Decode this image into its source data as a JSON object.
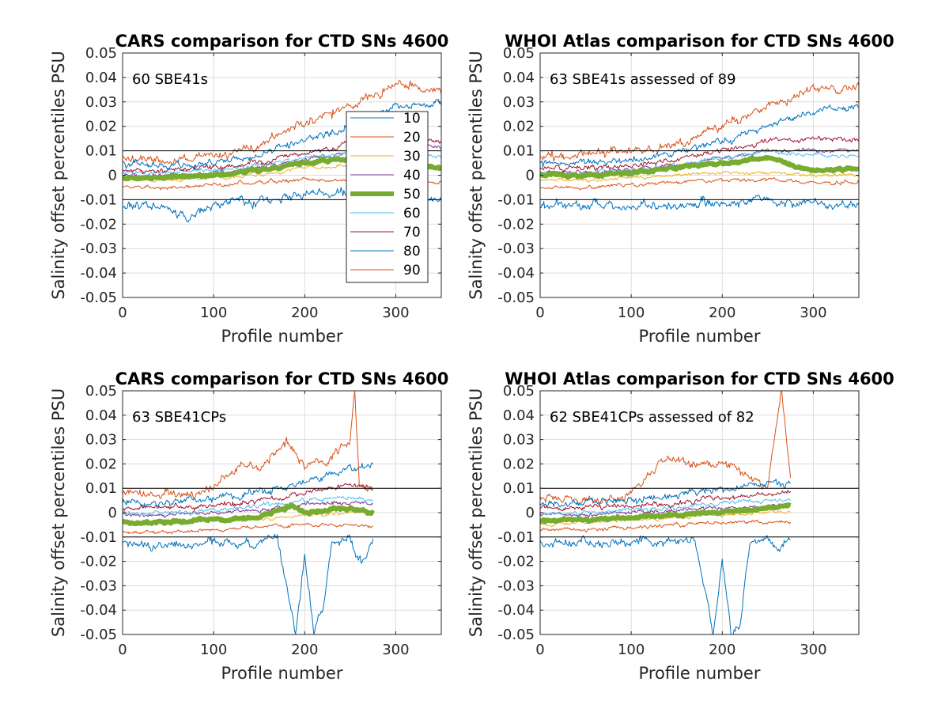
{
  "chart_data": [
    {
      "type": "line",
      "title": "CARS comparison for CTD SNs 4600",
      "xlabel": "Profile number",
      "ylabel": "Salinity offset percentiles PSU",
      "annotation": "60 SBE41s",
      "xlim": [
        0,
        350
      ],
      "ylim": [
        -0.05,
        0.05
      ],
      "xticks": [
        "0",
        "100",
        "200",
        "300"
      ],
      "yticks": [
        "-0.05",
        "-0.04",
        "-0.03",
        "-0.02",
        "-0.01",
        "0",
        "0.01",
        "0.02",
        "0.03",
        "0.04",
        "0.05"
      ],
      "grid": true,
      "legend_position": "upper-right",
      "reference_lines": [
        0.01,
        -0.01
      ],
      "n_profiles": 350,
      "series": [
        {
          "name": "10",
          "x": [
            0,
            50,
            70,
            100,
            150,
            200,
            250,
            300,
            350
          ],
          "values": [
            -0.013,
            -0.013,
            -0.017,
            -0.012,
            -0.01,
            -0.008,
            -0.007,
            -0.009,
            -0.01
          ]
        },
        {
          "name": "20",
          "x": [
            0,
            50,
            100,
            150,
            200,
            250,
            300,
            350
          ],
          "values": [
            0.007,
            0.006,
            0.007,
            0.012,
            0.022,
            0.028,
            0.037,
            0.035
          ]
        },
        {
          "name": "30",
          "x": [
            0,
            50,
            100,
            150,
            200,
            250,
            300,
            350
          ],
          "values": [
            -0.002,
            -0.002,
            -0.001,
            0.0,
            0.003,
            0.004,
            0.004,
            0.003
          ]
        },
        {
          "name": "40",
          "x": [
            0,
            50,
            100,
            150,
            200,
            250,
            300,
            350
          ],
          "values": [
            0.0,
            0.0,
            0.001,
            0.003,
            0.006,
            0.01,
            0.012,
            0.012
          ]
        },
        {
          "name": "50",
          "x": [
            0,
            50,
            100,
            150,
            200,
            250,
            300,
            350
          ],
          "values": [
            -0.001,
            -0.001,
            0.0,
            0.002,
            0.005,
            0.007,
            0.004,
            0.003
          ]
        },
        {
          "name": "60",
          "x": [
            0,
            50,
            100,
            150,
            200,
            250,
            300,
            350
          ],
          "values": [
            0.001,
            0.001,
            0.002,
            0.004,
            0.007,
            0.009,
            0.01,
            0.008
          ]
        },
        {
          "name": "70",
          "x": [
            0,
            50,
            100,
            150,
            200,
            250,
            300,
            350
          ],
          "values": [
            0.002,
            0.002,
            0.003,
            0.005,
            0.009,
            0.013,
            0.015,
            0.014
          ]
        },
        {
          "name": "80",
          "x": [
            0,
            50,
            100,
            150,
            200,
            250,
            300,
            350
          ],
          "values": [
            0.004,
            0.004,
            0.005,
            0.008,
            0.014,
            0.02,
            0.028,
            0.03
          ]
        },
        {
          "name": "90",
          "x": [
            0,
            50,
            100,
            150,
            200,
            250,
            300,
            350
          ],
          "values": [
            -0.005,
            -0.005,
            -0.004,
            -0.003,
            -0.002,
            -0.002,
            -0.003,
            -0.003
          ]
        }
      ]
    },
    {
      "type": "line",
      "title": "WHOI Atlas comparison for CTD SNs 4600",
      "xlabel": "Profile number",
      "ylabel": "Salinity offset percentiles PSU",
      "annotation": "63 SBE41s assessed of 89",
      "xlim": [
        0,
        350
      ],
      "ylim": [
        -0.05,
        0.05
      ],
      "xticks": [
        "0",
        "100",
        "200",
        "300"
      ],
      "yticks": [
        "-0.05",
        "-0.04",
        "-0.03",
        "-0.02",
        "-0.01",
        "0",
        "0.01",
        "0.02",
        "0.03",
        "0.04",
        "0.05"
      ],
      "grid": true,
      "reference_lines": [
        0.01,
        -0.01
      ],
      "n_profiles": 350,
      "series": [
        {
          "name": "10",
          "x": [
            0,
            50,
            100,
            150,
            200,
            250,
            300,
            350
          ],
          "values": [
            -0.012,
            -0.012,
            -0.013,
            -0.012,
            -0.011,
            -0.01,
            -0.012,
            -0.012
          ]
        },
        {
          "name": "20",
          "x": [
            0,
            50,
            100,
            150,
            200,
            250,
            300,
            350
          ],
          "values": [
            0.008,
            0.008,
            0.01,
            0.013,
            0.02,
            0.028,
            0.036,
            0.036
          ]
        },
        {
          "name": "30",
          "x": [
            0,
            50,
            100,
            150,
            200,
            250,
            300,
            350
          ],
          "values": [
            -0.002,
            -0.002,
            -0.001,
            0.0,
            0.001,
            0.001,
            0.0,
            0.0
          ]
        },
        {
          "name": "40",
          "x": [
            0,
            50,
            100,
            150,
            200,
            250,
            300,
            350
          ],
          "values": [
            0.001,
            0.001,
            0.002,
            0.004,
            0.007,
            0.01,
            0.01,
            0.01
          ]
        },
        {
          "name": "50",
          "x": [
            0,
            50,
            100,
            150,
            200,
            250,
            300,
            350
          ],
          "values": [
            0.0,
            0.0,
            0.001,
            0.003,
            0.005,
            0.007,
            0.002,
            0.003
          ]
        },
        {
          "name": "60",
          "x": [
            0,
            50,
            100,
            150,
            200,
            250,
            300,
            350
          ],
          "values": [
            0.001,
            0.001,
            0.002,
            0.004,
            0.007,
            0.01,
            0.008,
            0.008
          ]
        },
        {
          "name": "70",
          "x": [
            0,
            50,
            100,
            150,
            200,
            250,
            300,
            350
          ],
          "values": [
            0.003,
            0.003,
            0.004,
            0.006,
            0.01,
            0.014,
            0.015,
            0.014
          ]
        },
        {
          "name": "80",
          "x": [
            0,
            50,
            100,
            150,
            200,
            250,
            300,
            350
          ],
          "values": [
            0.005,
            0.005,
            0.006,
            0.009,
            0.014,
            0.02,
            0.026,
            0.028
          ]
        },
        {
          "name": "90",
          "x": [
            0,
            50,
            100,
            150,
            200,
            250,
            300,
            350
          ],
          "values": [
            -0.005,
            -0.005,
            -0.004,
            -0.003,
            -0.002,
            -0.002,
            -0.003,
            -0.003
          ]
        }
      ]
    },
    {
      "type": "line",
      "title": "CARS comparison for CTD SNs 4600",
      "xlabel": "Profile number",
      "ylabel": "Salinity offset percentiles PSU",
      "annotation": "63 SBE41CPs",
      "xlim": [
        0,
        350
      ],
      "ylim": [
        -0.05,
        0.05
      ],
      "xticks": [
        "0",
        "100",
        "200",
        "300"
      ],
      "yticks": [
        "-0.05",
        "-0.04",
        "-0.03",
        "-0.02",
        "-0.01",
        "0",
        "0.01",
        "0.02",
        "0.03",
        "0.04",
        "0.05"
      ],
      "grid": true,
      "reference_lines": [
        0.01,
        -0.01
      ],
      "n_profiles": 275,
      "series": [
        {
          "name": "10",
          "x": [
            0,
            50,
            100,
            150,
            170,
            180,
            190,
            200,
            210,
            220,
            230,
            250,
            260,
            275
          ],
          "values": [
            -0.013,
            -0.014,
            -0.013,
            -0.012,
            -0.01,
            -0.03,
            -0.05,
            -0.02,
            -0.05,
            -0.04,
            -0.012,
            -0.012,
            -0.02,
            -0.012
          ]
        },
        {
          "name": "20",
          "x": [
            0,
            50,
            100,
            130,
            150,
            180,
            200,
            230,
            250,
            255,
            260,
            275
          ],
          "values": [
            0.008,
            0.006,
            0.01,
            0.02,
            0.018,
            0.03,
            0.02,
            0.022,
            0.03,
            0.05,
            0.01,
            0.01
          ]
        },
        {
          "name": "30",
          "x": [
            0,
            50,
            100,
            150,
            200,
            250,
            275
          ],
          "values": [
            -0.005,
            -0.004,
            -0.003,
            -0.003,
            -0.001,
            0.0,
            0.0
          ]
        },
        {
          "name": "40",
          "x": [
            0,
            50,
            100,
            150,
            200,
            250,
            275
          ],
          "values": [
            -0.001,
            -0.001,
            0.0,
            0.001,
            0.003,
            0.004,
            0.003
          ]
        },
        {
          "name": "50",
          "x": [
            0,
            50,
            100,
            150,
            185,
            200,
            250,
            275
          ],
          "values": [
            -0.004,
            -0.004,
            -0.003,
            -0.002,
            0.003,
            0.0,
            0.002,
            0.0
          ]
        },
        {
          "name": "60",
          "x": [
            0,
            50,
            100,
            150,
            200,
            250,
            275
          ],
          "values": [
            0.0,
            0.0,
            0.001,
            0.003,
            0.005,
            0.006,
            0.005
          ]
        },
        {
          "name": "70",
          "x": [
            0,
            50,
            100,
            150,
            200,
            250,
            275
          ],
          "values": [
            0.002,
            0.002,
            0.003,
            0.005,
            0.008,
            0.012,
            0.01
          ]
        },
        {
          "name": "80",
          "x": [
            0,
            50,
            100,
            150,
            200,
            250,
            275
          ],
          "values": [
            0.004,
            0.004,
            0.006,
            0.008,
            0.012,
            0.018,
            0.02
          ]
        },
        {
          "name": "90",
          "x": [
            0,
            50,
            100,
            150,
            200,
            250,
            275
          ],
          "values": [
            -0.008,
            -0.008,
            -0.007,
            -0.006,
            -0.005,
            -0.005,
            -0.006
          ]
        }
      ]
    },
    {
      "type": "line",
      "title": "WHOI Atlas comparison for CTD SNs 4600",
      "xlabel": "Profile number",
      "ylabel": "Salinity offset percentiles PSU",
      "annotation": "62 SBE41CPs assessed of 82",
      "xlim": [
        0,
        350
      ],
      "ylim": [
        -0.05,
        0.05
      ],
      "xticks": [
        "0",
        "100",
        "200",
        "300"
      ],
      "yticks": [
        "-0.05",
        "-0.04",
        "-0.03",
        "-0.02",
        "-0.01",
        "0",
        "0.01",
        "0.02",
        "0.03",
        "0.04",
        "0.05"
      ],
      "grid": true,
      "reference_lines": [
        0.01,
        -0.01
      ],
      "n_profiles": 275,
      "series": [
        {
          "name": "10",
          "x": [
            0,
            50,
            100,
            150,
            170,
            180,
            190,
            200,
            210,
            220,
            230,
            250,
            260,
            275
          ],
          "values": [
            -0.012,
            -0.013,
            -0.012,
            -0.012,
            -0.01,
            -0.03,
            -0.05,
            -0.02,
            -0.05,
            -0.045,
            -0.012,
            -0.01,
            -0.015,
            -0.01
          ]
        },
        {
          "name": "20",
          "x": [
            0,
            50,
            100,
            130,
            150,
            180,
            200,
            230,
            250,
            265,
            275
          ],
          "values": [
            0.006,
            0.005,
            0.008,
            0.02,
            0.022,
            0.02,
            0.02,
            0.015,
            0.01,
            0.05,
            0.015
          ]
        },
        {
          "name": "30",
          "x": [
            0,
            50,
            100,
            150,
            200,
            250,
            275
          ],
          "values": [
            -0.005,
            -0.004,
            -0.003,
            -0.002,
            -0.001,
            0.0,
            0.0
          ]
        },
        {
          "name": "40",
          "x": [
            0,
            50,
            100,
            150,
            200,
            250,
            275
          ],
          "values": [
            -0.001,
            -0.001,
            0.0,
            0.001,
            0.002,
            0.003,
            0.003
          ]
        },
        {
          "name": "50",
          "x": [
            0,
            50,
            100,
            150,
            200,
            250,
            275
          ],
          "values": [
            -0.003,
            -0.003,
            -0.002,
            -0.001,
            0.0,
            0.002,
            0.003
          ]
        },
        {
          "name": "60",
          "x": [
            0,
            50,
            100,
            150,
            200,
            250,
            275
          ],
          "values": [
            0.0,
            0.0,
            0.001,
            0.002,
            0.004,
            0.005,
            0.005
          ]
        },
        {
          "name": "70",
          "x": [
            0,
            50,
            100,
            150,
            200,
            250,
            275
          ],
          "values": [
            0.002,
            0.002,
            0.003,
            0.004,
            0.006,
            0.008,
            0.008
          ]
        },
        {
          "name": "80",
          "x": [
            0,
            50,
            100,
            150,
            200,
            250,
            275
          ],
          "values": [
            0.003,
            0.004,
            0.005,
            0.007,
            0.01,
            0.012,
            0.012
          ]
        },
        {
          "name": "90",
          "x": [
            0,
            50,
            100,
            150,
            200,
            250,
            275
          ],
          "values": [
            -0.007,
            -0.007,
            -0.006,
            -0.005,
            -0.004,
            -0.004,
            -0.004
          ]
        }
      ]
    }
  ],
  "series_colors": {
    "10": "#0072bd",
    "20": "#d95319",
    "30": "#edb120",
    "40": "#7e2f8e",
    "50": "#77ac30",
    "60": "#4dbeee",
    "70": "#a2142f",
    "80": "#0072bd",
    "90": "#d95319"
  },
  "legend": [
    "10",
    "20",
    "30",
    "40",
    "50",
    "60",
    "70",
    "80",
    "90"
  ]
}
